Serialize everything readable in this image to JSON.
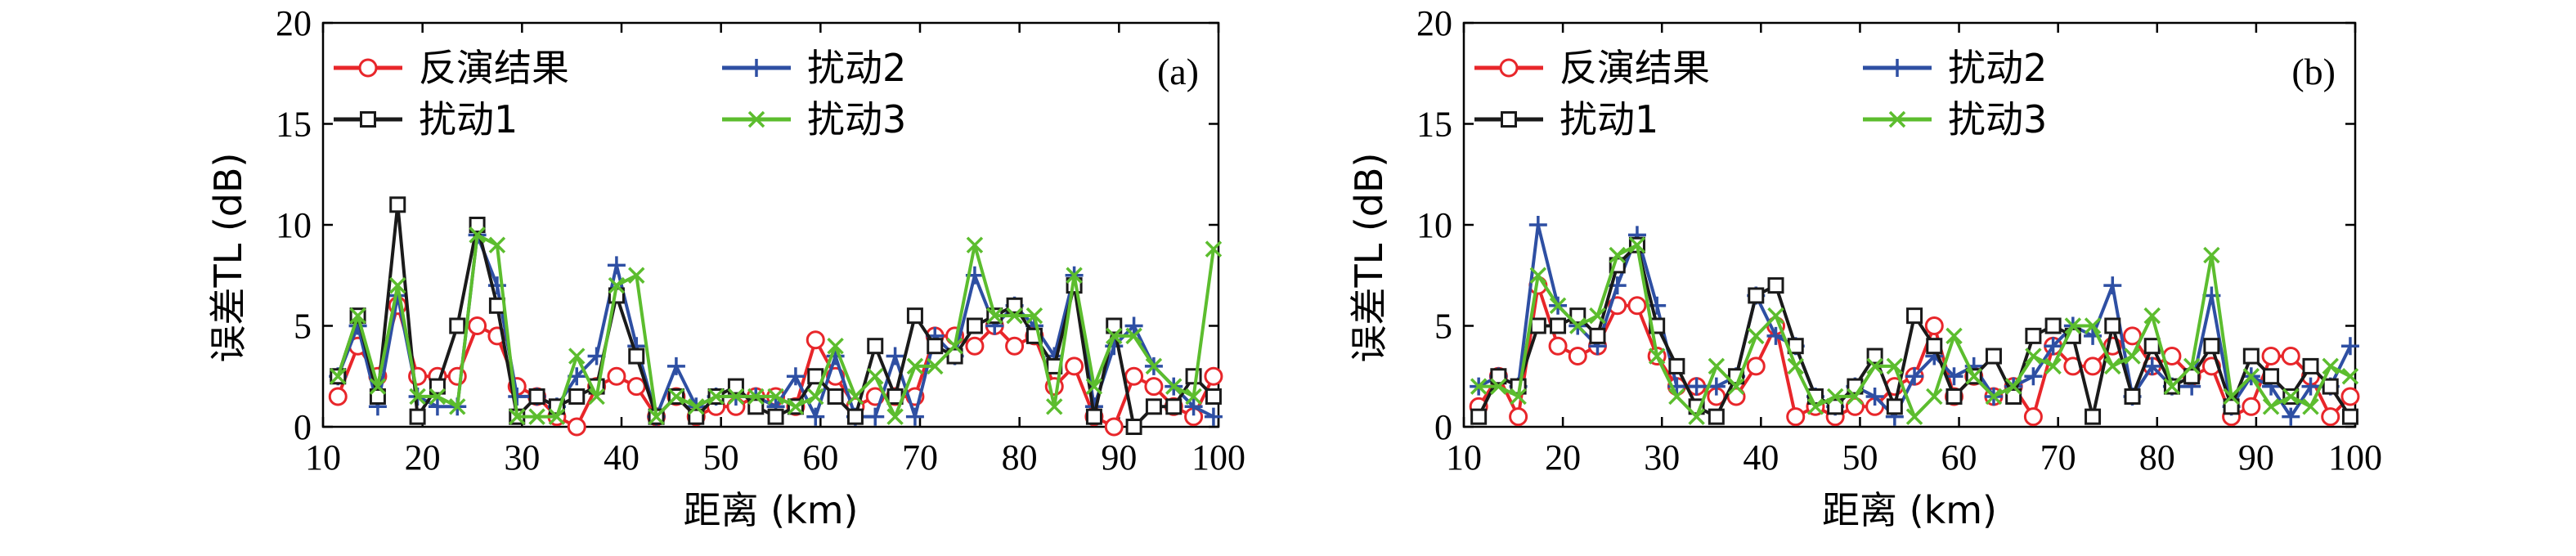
{
  "chart_data": [
    {
      "type": "line",
      "panel_label": "(a)",
      "xlabel": "距离 (km)",
      "ylabel": "误差TL (dB)",
      "xlim": [
        10,
        100
      ],
      "ylim": [
        0,
        20
      ],
      "xticks": [
        10,
        20,
        30,
        40,
        50,
        60,
        70,
        80,
        90,
        100
      ],
      "yticks": [
        0,
        5,
        10,
        15,
        20
      ],
      "grid": false,
      "legend_position": "top-left",
      "x": [
        11.5,
        13.5,
        15.5,
        17.5,
        19.5,
        21.5,
        23.5,
        25.5,
        27.5,
        29.5,
        31.5,
        33.5,
        35.5,
        37.5,
        39.5,
        41.5,
        43.5,
        45.5,
        47.5,
        49.5,
        51.5,
        53.5,
        55.5,
        57.5,
        59.5,
        61.5,
        63.5,
        65.5,
        67.5,
        69.5,
        71.5,
        73.5,
        75.5,
        77.5,
        79.5,
        81.5,
        83.5,
        85.5,
        87.5,
        89.5,
        91.5,
        93.5,
        95.5,
        97.5,
        99.5
      ],
      "series": [
        {
          "name": "反演结果",
          "color": "#e8262a",
          "marker": "circle",
          "values": [
            1.5,
            4.0,
            2.5,
            6.0,
            2.5,
            2.5,
            2.5,
            5.0,
            4.5,
            2.0,
            1.5,
            0.5,
            0.0,
            2.0,
            2.5,
            2.0,
            0.5,
            1.5,
            0.5,
            1.0,
            1.0,
            1.5,
            1.5,
            1.0,
            4.3,
            2.5,
            1.0,
            1.5,
            1.5,
            1.5,
            4.5,
            4.5,
            4.0,
            5.0,
            4.0,
            4.5,
            2.0,
            3.0,
            0.5,
            0.0,
            2.5,
            2.0,
            1.0,
            0.5,
            2.5
          ]
        },
        {
          "name": "扰动2",
          "color": "#2e4fa3",
          "marker": "plus",
          "values": [
            2.5,
            5.0,
            1.0,
            6.5,
            1.5,
            1.0,
            1.0,
            9.5,
            7.0,
            1.5,
            1.5,
            1.0,
            2.5,
            3.5,
            8.0,
            4.0,
            0.5,
            3.0,
            1.0,
            1.5,
            1.5,
            1.5,
            1.0,
            2.5,
            0.5,
            3.5,
            0.5,
            0.5,
            3.5,
            0.5,
            4.5,
            3.5,
            7.5,
            5.0,
            6.0,
            5.0,
            3.5,
            7.5,
            1.0,
            4.0,
            5.0,
            3.0,
            2.0,
            1.0,
            0.5
          ]
        },
        {
          "name": "扰动1",
          "color": "#1a1a1a",
          "marker": "square",
          "values": [
            2.5,
            5.5,
            1.5,
            11.0,
            0.5,
            2.0,
            5.0,
            10.0,
            6.0,
            0.5,
            1.5,
            1.0,
            1.5,
            2.0,
            6.5,
            3.5,
            0.5,
            1.5,
            0.5,
            1.5,
            2.0,
            1.0,
            0.5,
            1.0,
            2.5,
            1.5,
            0.5,
            4.0,
            1.5,
            5.5,
            4.0,
            3.5,
            5.0,
            5.5,
            6.0,
            4.5,
            3.0,
            7.0,
            0.5,
            5.0,
            0.0,
            1.0,
            1.0,
            2.5,
            1.5
          ]
        },
        {
          "name": "扰动3",
          "color": "#5cbd2e",
          "marker": "x",
          "values": [
            2.5,
            5.5,
            2.0,
            7.0,
            1.5,
            1.5,
            1.0,
            9.5,
            9.0,
            0.5,
            0.5,
            0.5,
            3.5,
            1.5,
            7.0,
            7.5,
            0.5,
            1.5,
            1.0,
            1.5,
            1.5,
            1.5,
            1.5,
            1.0,
            1.5,
            4.0,
            1.5,
            2.5,
            0.5,
            3.0,
            3.0,
            4.0,
            9.0,
            5.5,
            5.5,
            5.5,
            1.0,
            7.5,
            2.0,
            4.5,
            4.5,
            3.0,
            2.0,
            1.5,
            8.8
          ]
        }
      ]
    },
    {
      "type": "line",
      "panel_label": "(b)",
      "xlabel": "距离 (km)",
      "ylabel": "误差TL (dB)",
      "xlim": [
        10,
        100
      ],
      "ylim": [
        0,
        20
      ],
      "xticks": [
        10,
        20,
        30,
        40,
        50,
        60,
        70,
        80,
        90,
        100
      ],
      "yticks": [
        0,
        5,
        10,
        15,
        20
      ],
      "grid": false,
      "legend_position": "top-left",
      "x": [
        11.5,
        13.5,
        15.5,
        17.5,
        19.5,
        21.5,
        23.5,
        25.5,
        27.5,
        29.5,
        31.5,
        33.5,
        35.5,
        37.5,
        39.5,
        41.5,
        43.5,
        45.5,
        47.5,
        49.5,
        51.5,
        53.5,
        55.5,
        57.5,
        59.5,
        61.5,
        63.5,
        65.5,
        67.5,
        69.5,
        71.5,
        73.5,
        75.5,
        77.5,
        79.5,
        81.5,
        83.5,
        85.5,
        87.5,
        89.5,
        91.5,
        93.5,
        95.5,
        97.5,
        99.5
      ],
      "series": [
        {
          "name": "反演结果",
          "color": "#e8262a",
          "marker": "circle",
          "values": [
            1.0,
            2.5,
            0.5,
            7.0,
            4.0,
            3.5,
            4.0,
            6.0,
            6.0,
            3.5,
            2.0,
            2.0,
            1.5,
            1.5,
            3.0,
            5.0,
            0.5,
            1.0,
            0.5,
            1.0,
            1.0,
            2.0,
            2.5,
            5.0,
            1.5,
            2.5,
            1.5,
            2.0,
            0.5,
            4.0,
            3.0,
            3.0,
            4.0,
            4.5,
            3.0,
            3.5,
            2.5,
            3.0,
            0.5,
            1.0,
            3.5,
            3.5,
            2.5,
            0.5,
            1.5
          ]
        },
        {
          "name": "扰动2",
          "color": "#2e4fa3",
          "marker": "plus",
          "values": [
            2.0,
            2.5,
            2.0,
            10.0,
            6.0,
            5.0,
            4.0,
            7.0,
            9.5,
            6.0,
            2.0,
            2.0,
            2.0,
            2.5,
            6.5,
            4.5,
            4.0,
            1.5,
            1.0,
            2.0,
            1.5,
            0.5,
            2.5,
            3.5,
            2.5,
            3.0,
            1.5,
            2.0,
            2.5,
            4.0,
            5.0,
            4.5,
            7.0,
            1.5,
            3.0,
            2.0,
            2.0,
            6.5,
            1.0,
            2.5,
            2.0,
            0.5,
            2.0,
            2.0,
            4.0
          ]
        },
        {
          "name": "扰动1",
          "color": "#1a1a1a",
          "marker": "square",
          "values": [
            0.5,
            2.5,
            2.0,
            5.0,
            5.0,
            5.5,
            4.5,
            8.0,
            9.0,
            5.0,
            3.0,
            1.0,
            0.5,
            2.5,
            6.5,
            7.0,
            4.0,
            1.5,
            1.0,
            2.0,
            3.5,
            1.0,
            5.5,
            4.0,
            1.5,
            2.5,
            3.5,
            1.5,
            4.5,
            5.0,
            4.5,
            0.5,
            5.0,
            1.5,
            4.0,
            2.0,
            2.5,
            4.0,
            1.0,
            3.5,
            2.5,
            1.5,
            3.0,
            2.0,
            0.5
          ]
        },
        {
          "name": "扰动3",
          "color": "#5cbd2e",
          "marker": "x",
          "values": [
            2.0,
            2.0,
            1.5,
            7.5,
            6.0,
            5.0,
            5.5,
            8.5,
            9.0,
            3.5,
            1.5,
            0.5,
            3.0,
            2.0,
            4.5,
            5.5,
            3.0,
            1.0,
            1.5,
            1.5,
            3.0,
            3.0,
            0.5,
            1.5,
            4.5,
            2.5,
            1.5,
            2.0,
            3.5,
            3.0,
            5.0,
            5.0,
            3.0,
            3.5,
            5.5,
            2.0,
            3.0,
            8.5,
            1.5,
            2.5,
            1.0,
            1.5,
            1.0,
            3.0,
            2.5
          ]
        }
      ]
    }
  ]
}
